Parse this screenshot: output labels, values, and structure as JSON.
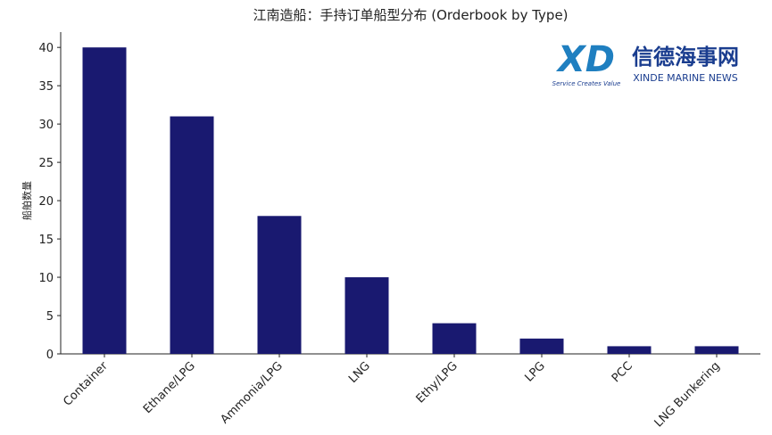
{
  "chart_data": {
    "type": "bar",
    "title": "江南造船：手持订单船型分布 (Orderbook by Type)",
    "y_label": "船舶数量",
    "categories": [
      "Container",
      "Ethane/LPG",
      "Ammonia/LPG",
      "LNG",
      "Ethy/LPG",
      "LPG",
      "PCC",
      "LNG Bunkering"
    ],
    "values": [
      40,
      31,
      18,
      10,
      4,
      2,
      1,
      1
    ],
    "color": "#191970",
    "ylim": [
      0,
      42
    ],
    "yticks": [
      0,
      5,
      10,
      15,
      20,
      25,
      30,
      35,
      40
    ]
  },
  "logo": {
    "mark": "XD",
    "tagline": "Service Creates Value",
    "name_cn": "信德海事网",
    "name_en": "XINDE MARINE NEWS"
  }
}
